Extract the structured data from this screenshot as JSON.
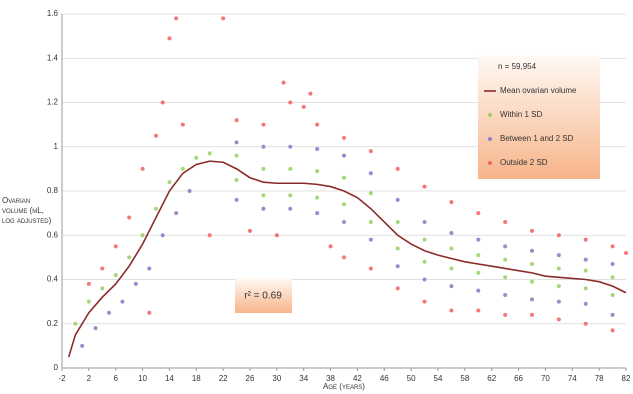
{
  "chart_data": {
    "type": "scatter",
    "x_label": "Age (years)",
    "y_label": "Ovarian volume (mL, log adjusted)",
    "annotations": [
      "n = 59,954",
      "r² = 0.69"
    ],
    "xlim": [
      -2,
      82
    ],
    "xticks": [
      -2,
      2,
      6,
      10,
      14,
      18,
      22,
      26,
      30,
      34,
      38,
      42,
      46,
      50,
      54,
      58,
      62,
      66,
      70,
      74,
      78,
      82
    ],
    "ylim": [
      0,
      1.6
    ],
    "yticks": [
      0,
      0.2,
      0.4,
      0.6,
      0.8,
      1,
      1.2,
      1.4,
      1.6
    ],
    "grid": true,
    "legend": "upper right",
    "series": [
      {
        "name": "Mean ovarian volume",
        "type": "line",
        "color": "#8b2b2b",
        "x": [
          -1,
          0,
          2,
          4,
          6,
          8,
          10,
          12,
          14,
          16,
          18,
          20,
          22,
          24,
          26,
          28,
          30,
          32,
          34,
          36,
          38,
          40,
          42,
          44,
          46,
          48,
          50,
          52,
          54,
          56,
          58,
          60,
          62,
          64,
          66,
          68,
          70,
          72,
          74,
          76,
          78,
          80,
          82
        ],
        "y": [
          0.05,
          0.15,
          0.25,
          0.32,
          0.38,
          0.46,
          0.56,
          0.68,
          0.8,
          0.88,
          0.92,
          0.935,
          0.93,
          0.9,
          0.86,
          0.84,
          0.835,
          0.835,
          0.835,
          0.83,
          0.82,
          0.8,
          0.77,
          0.72,
          0.66,
          0.6,
          0.56,
          0.53,
          0.51,
          0.495,
          0.48,
          0.47,
          0.46,
          0.45,
          0.44,
          0.43,
          0.415,
          0.41,
          0.405,
          0.4,
          0.39,
          0.37,
          0.34
        ]
      },
      {
        "name": "Within 1 SD",
        "type": "scatter",
        "color": "#9fd06a",
        "x": [
          0,
          2,
          4,
          6,
          8,
          10,
          12,
          14,
          16,
          18,
          20,
          24,
          24,
          28,
          28,
          32,
          32,
          36,
          36,
          40,
          40,
          44,
          44,
          48,
          48,
          52,
          52,
          56,
          56,
          60,
          60,
          64,
          64,
          68,
          68,
          72,
          72,
          76,
          76,
          80,
          80
        ],
        "y": [
          0.2,
          0.3,
          0.36,
          0.42,
          0.5,
          0.6,
          0.72,
          0.84,
          0.9,
          0.95,
          0.97,
          0.96,
          0.85,
          0.9,
          0.78,
          0.9,
          0.78,
          0.89,
          0.77,
          0.86,
          0.74,
          0.79,
          0.66,
          0.66,
          0.54,
          0.58,
          0.48,
          0.54,
          0.45,
          0.51,
          0.43,
          0.49,
          0.41,
          0.47,
          0.39,
          0.45,
          0.37,
          0.44,
          0.36,
          0.41,
          0.33
        ]
      },
      {
        "name": "Between 1 and 2 SD",
        "type": "scatter",
        "color": "#8f80c8",
        "x": [
          1,
          3,
          5,
          7,
          9,
          11,
          13,
          15,
          17,
          24,
          24,
          28,
          28,
          32,
          32,
          36,
          36,
          40,
          40,
          44,
          44,
          48,
          48,
          52,
          52,
          56,
          56,
          60,
          60,
          64,
          64,
          68,
          68,
          72,
          72,
          76,
          76,
          80,
          80
        ],
        "y": [
          0.1,
          0.18,
          0.25,
          0.3,
          0.38,
          0.45,
          0.6,
          0.7,
          0.8,
          1.02,
          0.76,
          1.0,
          0.72,
          1.0,
          0.72,
          0.99,
          0.7,
          0.96,
          0.66,
          0.88,
          0.58,
          0.76,
          0.46,
          0.66,
          0.4,
          0.61,
          0.37,
          0.58,
          0.35,
          0.55,
          0.33,
          0.53,
          0.31,
          0.51,
          0.3,
          0.49,
          0.29,
          0.47,
          0.24
        ]
      },
      {
        "name": "Outside 2 SD",
        "type": "scatter",
        "color": "#f2686a",
        "x": [
          2,
          4,
          6,
          8,
          10,
          11,
          12,
          13,
          14,
          15,
          16,
          20,
          22,
          24,
          26,
          28,
          30,
          31,
          32,
          34,
          35,
          36,
          38,
          40,
          40,
          44,
          44,
          48,
          48,
          52,
          52,
          56,
          56,
          60,
          60,
          64,
          64,
          68,
          68,
          72,
          72,
          76,
          76,
          80,
          80,
          82
        ],
        "y": [
          0.38,
          0.45,
          0.55,
          0.68,
          0.9,
          0.25,
          1.05,
          1.2,
          1.49,
          1.58,
          1.1,
          0.6,
          1.58,
          1.12,
          0.62,
          1.1,
          0.6,
          1.29,
          1.2,
          1.18,
          1.24,
          1.1,
          0.55,
          1.04,
          0.5,
          0.98,
          0.45,
          0.9,
          0.36,
          0.82,
          0.3,
          0.75,
          0.26,
          0.7,
          0.26,
          0.66,
          0.24,
          0.62,
          0.24,
          0.6,
          0.22,
          0.58,
          0.2,
          0.55,
          0.17,
          0.52
        ]
      }
    ]
  }
}
